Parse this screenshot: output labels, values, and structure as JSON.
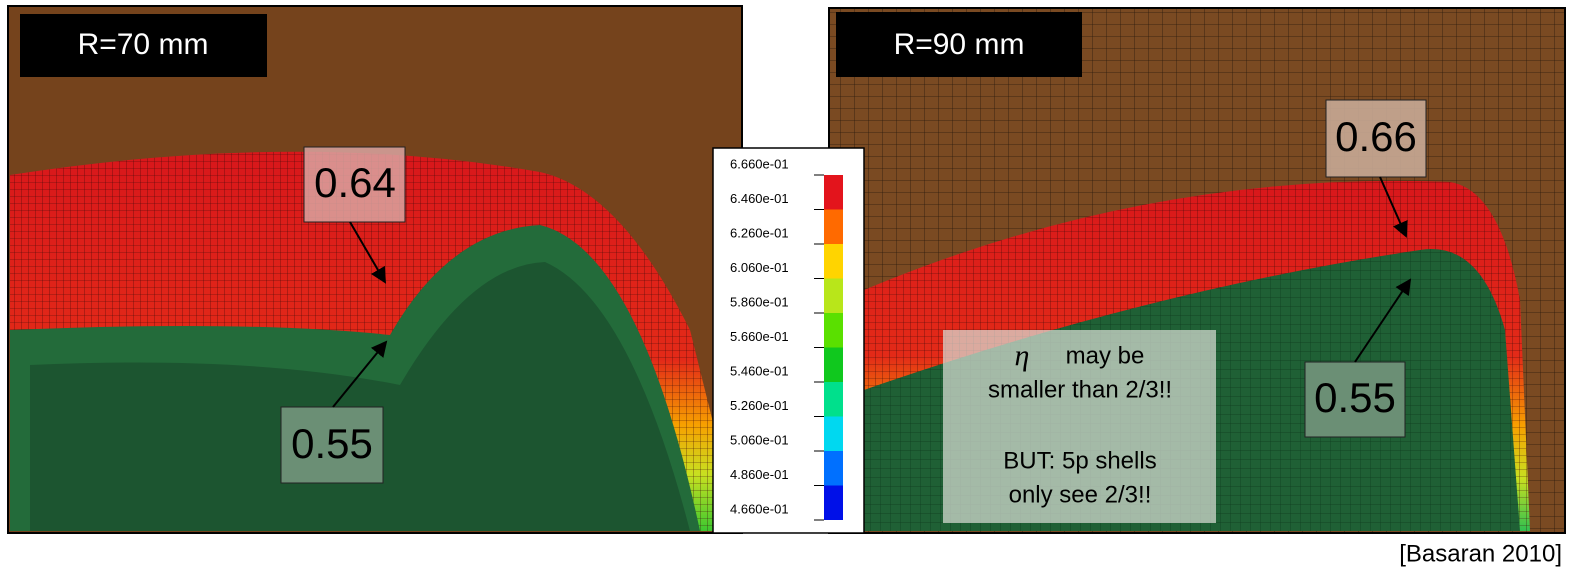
{
  "left_panel": {
    "label": "R=70 mm",
    "value_top": "0.64",
    "value_bottom": "0.55"
  },
  "right_panel": {
    "label": "R=90 mm",
    "value_top": "0.66",
    "value_bottom": "0.55",
    "note_line1": "may be",
    "note_line2": "smaller than 2/3!!",
    "note_symbol": "η",
    "note_line3": "BUT: 5p shells",
    "note_line4": "only see 2/3!!"
  },
  "legend": {
    "labels": [
      "6.660e-01",
      "6.460e-01",
      "6.260e-01",
      "6.060e-01",
      "5.860e-01",
      "5.660e-01",
      "5.460e-01",
      "5.260e-01",
      "5.060e-01",
      "4.860e-01",
      "4.660e-01"
    ],
    "colors": [
      "#e3141c",
      "#ff6a00",
      "#ffd400",
      "#b8e61a",
      "#5ae000",
      "#10c81e",
      "#00e08c",
      "#00d8f0",
      "#0070ff",
      "#0010e8"
    ]
  },
  "citation": "[Basaran 2010]"
}
